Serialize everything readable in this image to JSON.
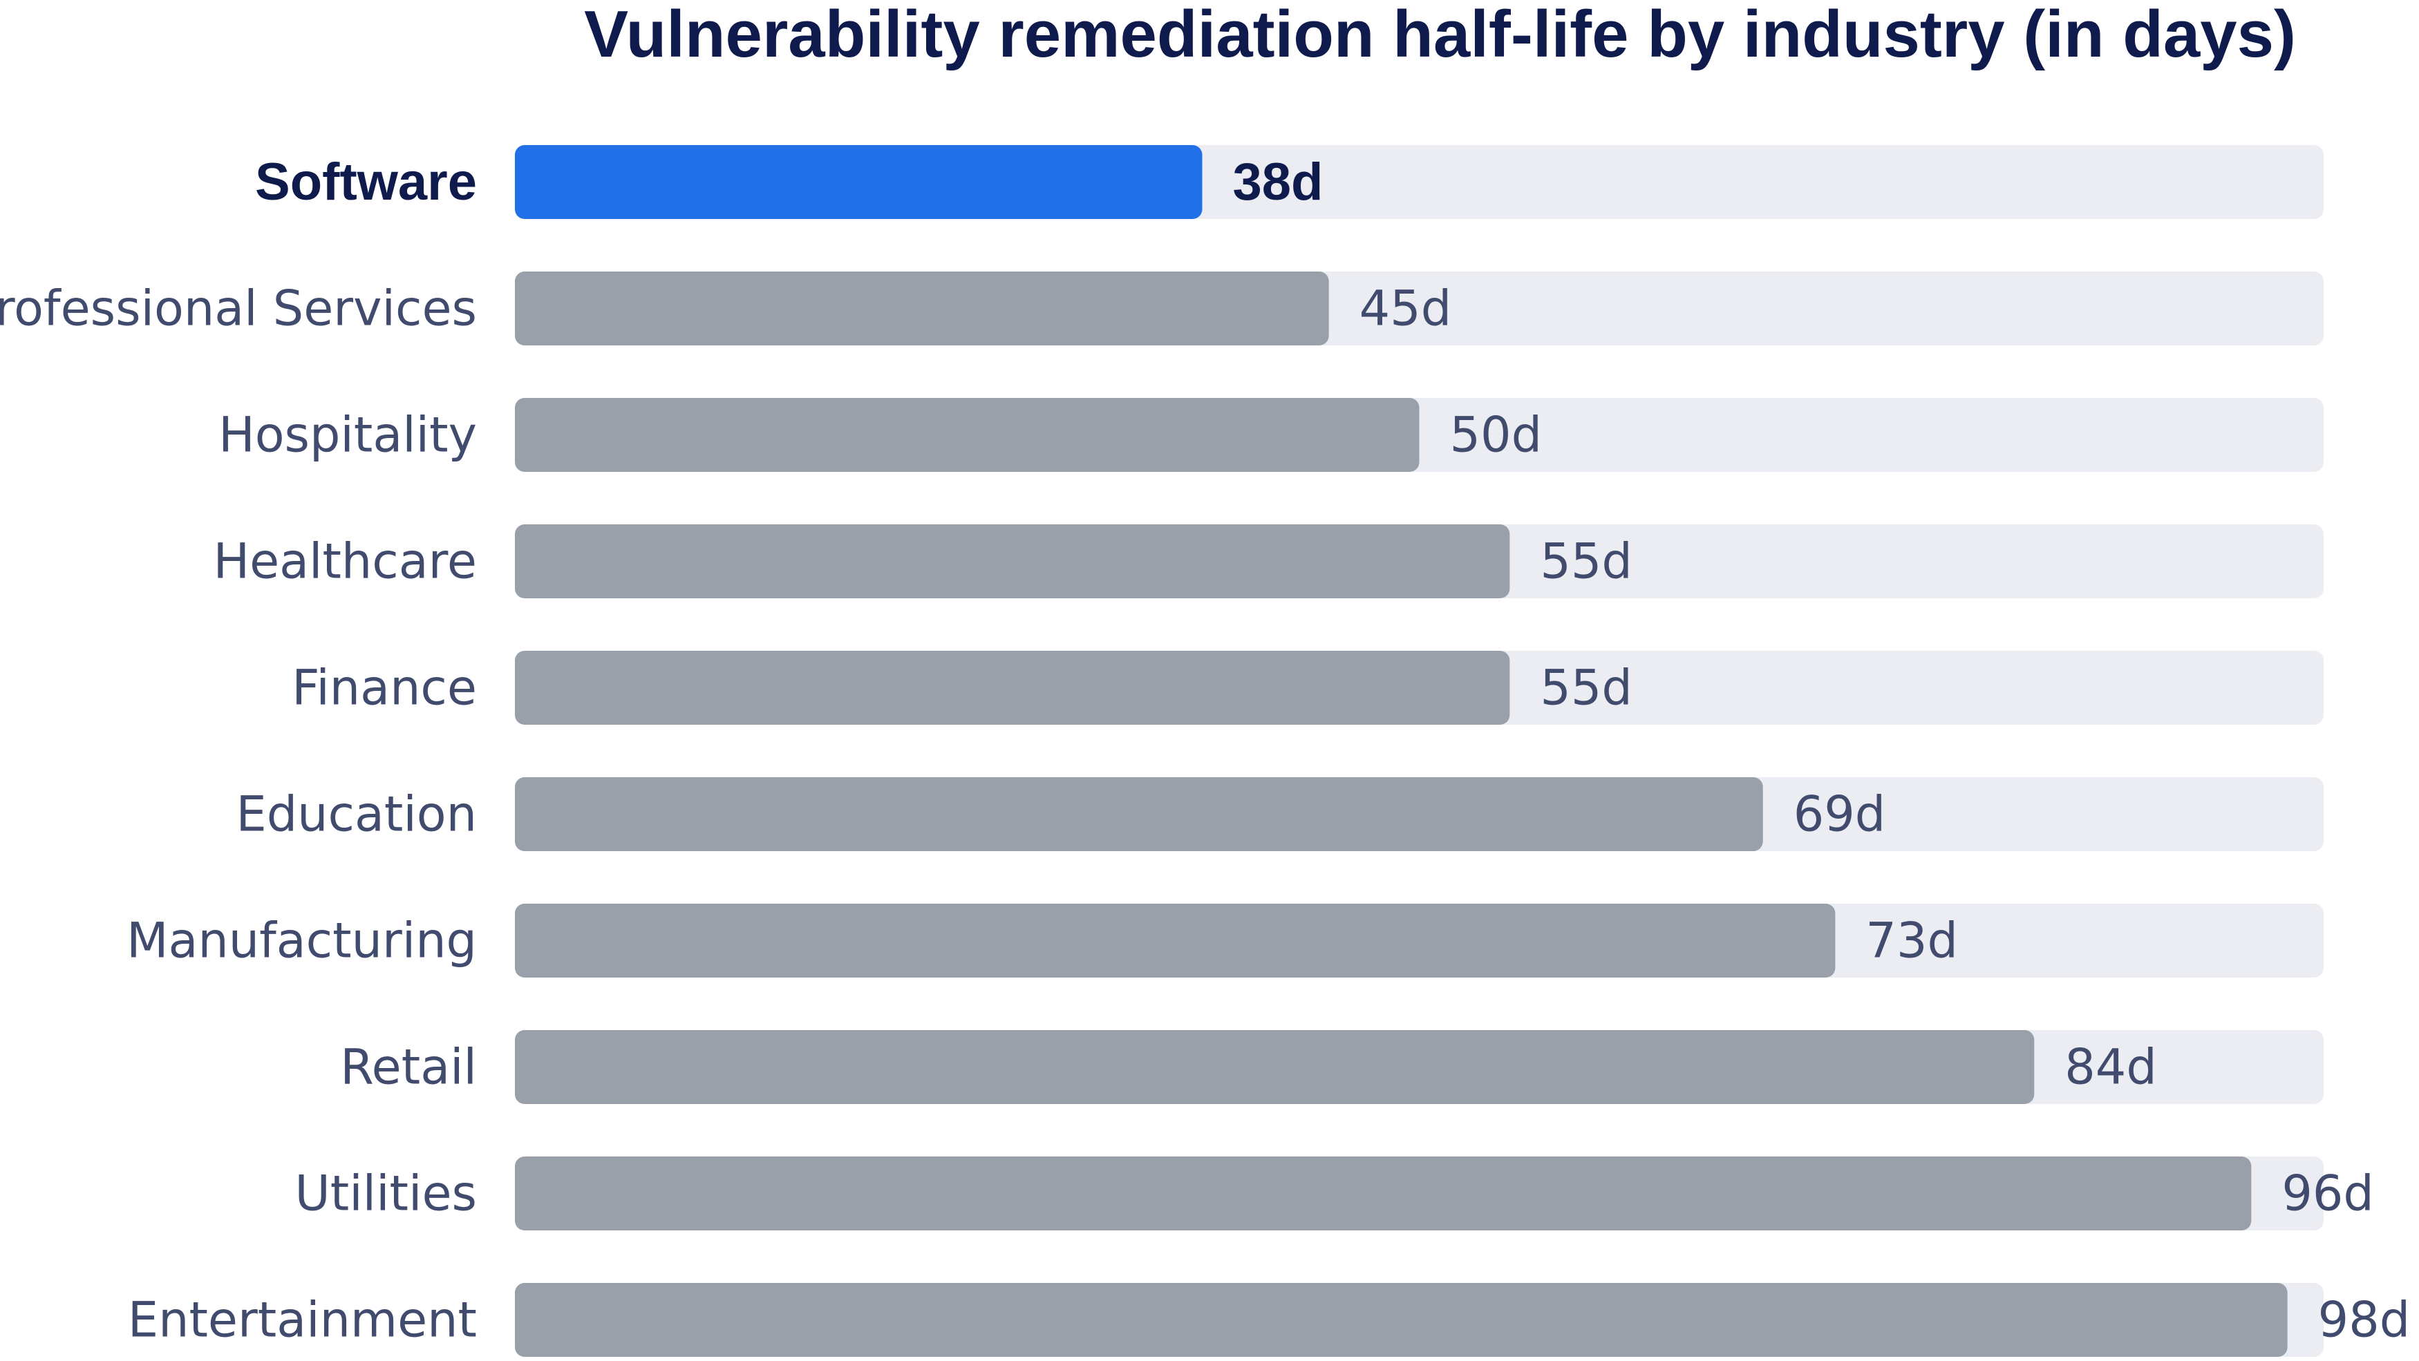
{
  "chart_data": {
    "type": "bar",
    "orientation": "horizontal",
    "title": "Vulnerability remediation half-life by industry (in days)",
    "categories": [
      "Software",
      "Professional Services",
      "Hospitality",
      "Healthcare",
      "Finance",
      "Education",
      "Manufacturing",
      "Retail",
      "Utilities",
      "Entertainment"
    ],
    "values": [
      38,
      45,
      50,
      55,
      55,
      69,
      73,
      84,
      96,
      98
    ],
    "value_labels": [
      "38d",
      "45d",
      "50d",
      "55d",
      "55d",
      "69d",
      "73d",
      "84d",
      "96d",
      "98d"
    ],
    "highlight": "Software",
    "xlim": [
      0,
      100
    ],
    "grid": false,
    "legend": "none",
    "colors": {
      "highlight": "#2170e8",
      "bar": "#99a0aa",
      "track": "#ecedf2",
      "title": "#0f1b4c",
      "label": "#414b6e"
    }
  }
}
